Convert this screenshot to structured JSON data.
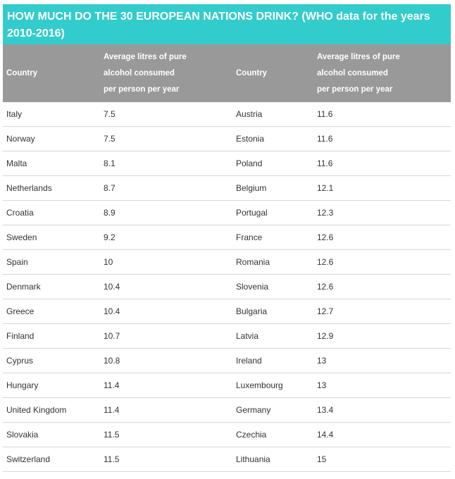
{
  "title": "HOW MUCH DO THE 30 EUROPEAN NATIONS DRINK? (WHO data for the years 2010-2016)",
  "headers": {
    "country": "Country",
    "value_line1": "Average litres of pure",
    "value_line2": "alcohol consumed",
    "value_line3": "per person per year"
  },
  "rows": [
    {
      "c1": "Italy",
      "v1": "7.5",
      "c2": "Austria",
      "v2": "11.6"
    },
    {
      "c1": "Norway",
      "v1": "7.5",
      "c2": "Estonia",
      "v2": "11.6"
    },
    {
      "c1": "Malta",
      "v1": "8.1",
      "c2": "Poland",
      "v2": "11.6"
    },
    {
      "c1": "Netherlands",
      "v1": "8.7",
      "c2": "Belgium",
      "v2": "12.1"
    },
    {
      "c1": "Croatia",
      "v1": "8.9",
      "c2": "Portugal",
      "v2": "12.3"
    },
    {
      "c1": "Sweden",
      "v1": "9.2",
      "c2": "France",
      "v2": "12.6"
    },
    {
      "c1": "Spain",
      "v1": "10",
      "c2": "Romania",
      "v2": "12.6"
    },
    {
      "c1": "Denmark",
      "v1": "10.4",
      "c2": "Slovenia",
      "v2": "12.6"
    },
    {
      "c1": "Greece",
      "v1": "10.4",
      "c2": "Bulgaria",
      "v2": "12.7"
    },
    {
      "c1": "Finland",
      "v1": "10.7",
      "c2": "Latvia",
      "v2": "12.9"
    },
    {
      "c1": "Cyprus",
      "v1": "10.8",
      "c2": "Ireland",
      "v2": "13"
    },
    {
      "c1": "Hungary",
      "v1": "11.4",
      "c2": "Luxembourg",
      "v2": "13"
    },
    {
      "c1": "United Kingdom",
      "v1": "11.4",
      "c2": "Germany",
      "v2": "13.4"
    },
    {
      "c1": "Slovakia",
      "v1": "11.5",
      "c2": "Czechia",
      "v2": "14.4"
    },
    {
      "c1": "Switzerland",
      "v1": "11.5",
      "c2": "Lithuania",
      "v2": "15"
    }
  ],
  "colors": {
    "title_bg": "#33cccc",
    "header_bg": "#999999",
    "row_divider": "#d6d6d6"
  }
}
